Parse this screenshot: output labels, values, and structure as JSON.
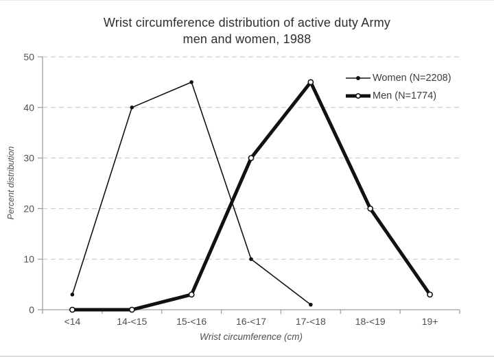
{
  "chart_data": {
    "type": "line",
    "title": "Wrist circumference distribution of active duty Army",
    "subtitle": "men and women, 1988",
    "xlabel": "Wrist circumference (cm)",
    "ylabel": "Percent distribution",
    "categories": [
      "<14",
      "14-<15",
      "15-<16",
      "16-<17",
      "17-<18",
      "18-<19",
      "19+"
    ],
    "yticks": [
      0,
      10,
      20,
      30,
      40,
      50
    ],
    "ylim": [
      0,
      50
    ],
    "grid": "horizontal-dashed",
    "legend_position": "top-right-inside",
    "colors": {
      "line": "#111111",
      "grid": "#c3c3c3",
      "axis": "#9a9a9a",
      "tick_text": "#4f4f4f",
      "title_text": "#2e2e2e",
      "background": "#ffffff"
    },
    "series": [
      {
        "name": "Women (N=2208)",
        "values": [
          3,
          40,
          45,
          10,
          1,
          null,
          null
        ],
        "marker": "filled-circle",
        "stroke_width": 1.6,
        "color": "#111111"
      },
      {
        "name": "Men (N=1774)",
        "values": [
          0,
          0,
          3,
          30,
          45,
          20,
          3
        ],
        "marker": "open-circle",
        "stroke_width": 5,
        "color": "#111111"
      }
    ]
  }
}
